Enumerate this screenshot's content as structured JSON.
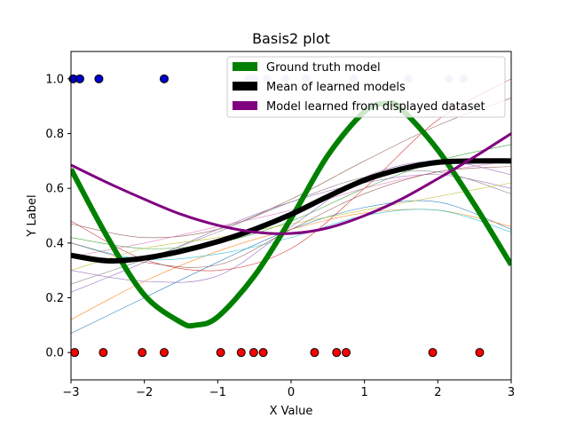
{
  "chart_data": {
    "type": "scatter",
    "title": "Basis2 plot",
    "xlabel": "X Value",
    "ylabel": "Y Label",
    "xlim": [
      -3,
      3
    ],
    "ylim": [
      -0.1,
      1.1
    ],
    "xticks": [
      "−3",
      "−2",
      "−1",
      "0",
      "1",
      "2",
      "3"
    ],
    "xtick_values": [
      -3,
      -2,
      -1,
      0,
      1,
      2,
      3
    ],
    "yticks": [
      "0.0",
      "0.2",
      "0.4",
      "0.6",
      "0.8",
      "1.0"
    ],
    "ytick_values": [
      0,
      0.2,
      0.4,
      0.6,
      0.8,
      1.0
    ],
    "grid": false,
    "legend_position": "top-right",
    "colors": {
      "ground_truth": "#008000",
      "mean": "#000000",
      "displayed": "#800080",
      "point_one": "#0000cd",
      "point_zero": "#ff0000",
      "point_faded": "#c8c8f0"
    },
    "series": [
      {
        "name": "Ground truth model",
        "kind": "line",
        "x": [
          -3.0,
          -2.5,
          -2.0,
          -1.5,
          -1.3,
          -1.0,
          -0.5,
          0.0,
          0.5,
          1.0,
          1.3,
          1.5,
          2.0,
          2.5,
          3.0
        ],
        "y": [
          0.67,
          0.42,
          0.21,
          0.11,
          0.1,
          0.13,
          0.28,
          0.49,
          0.72,
          0.88,
          0.91,
          0.89,
          0.74,
          0.54,
          0.32
        ]
      },
      {
        "name": "Mean of learned models",
        "kind": "line",
        "x": [
          -3.0,
          -2.5,
          -2.0,
          -1.5,
          -1.0,
          -0.5,
          0.0,
          0.5,
          1.0,
          1.5,
          2.0,
          2.5,
          3.0
        ],
        "y": [
          0.355,
          0.335,
          0.345,
          0.37,
          0.405,
          0.45,
          0.505,
          0.57,
          0.63,
          0.67,
          0.695,
          0.7,
          0.7
        ]
      },
      {
        "name": "Model learned from displayed dataset",
        "kind": "line",
        "x": [
          -3.0,
          -2.5,
          -2.0,
          -1.5,
          -1.0,
          -0.5,
          0.0,
          0.5,
          1.0,
          1.5,
          2.0,
          2.5,
          3.0
        ],
        "y": [
          0.685,
          0.62,
          0.56,
          0.505,
          0.465,
          0.44,
          0.435,
          0.455,
          0.5,
          0.56,
          0.635,
          0.715,
          0.8
        ]
      }
    ],
    "thin_models": [
      {
        "color": "#1f77b4",
        "x": [
          -3,
          -2,
          -1,
          0,
          1,
          2,
          3
        ],
        "y": [
          0.07,
          0.2,
          0.33,
          0.45,
          0.53,
          0.55,
          0.45
        ]
      },
      {
        "color": "#ff7f0e",
        "x": [
          -3,
          -2,
          -1,
          0,
          1,
          2,
          3
        ],
        "y": [
          0.12,
          0.26,
          0.37,
          0.45,
          0.51,
          0.52,
          0.46
        ]
      },
      {
        "color": "#2ca02c",
        "x": [
          -3,
          -2,
          -1,
          0,
          1,
          2,
          3
        ],
        "y": [
          0.42,
          0.38,
          0.4,
          0.48,
          0.6,
          0.7,
          0.76
        ]
      },
      {
        "color": "#d62728",
        "x": [
          -3,
          -2,
          -1,
          0,
          1,
          2,
          3
        ],
        "y": [
          0.48,
          0.34,
          0.3,
          0.38,
          0.6,
          0.85,
          1.0
        ]
      },
      {
        "color": "#9467bd",
        "x": [
          -3,
          -2,
          -1,
          0,
          1,
          2,
          3
        ],
        "y": [
          0.22,
          0.33,
          0.45,
          0.55,
          0.62,
          0.65,
          0.6
        ]
      },
      {
        "color": "#8c564b",
        "x": [
          -3,
          -2,
          -1,
          0,
          1,
          2,
          3
        ],
        "y": [
          0.47,
          0.42,
          0.45,
          0.56,
          0.7,
          0.83,
          0.93
        ]
      },
      {
        "color": "#e377c2",
        "x": [
          -3,
          -2,
          -1,
          0,
          1,
          2,
          3
        ],
        "y": [
          0.35,
          0.4,
          0.46,
          0.52,
          0.6,
          0.66,
          0.7
        ]
      },
      {
        "color": "#7f7f7f",
        "x": [
          -3,
          -2,
          -1,
          0,
          1,
          2,
          3
        ],
        "y": [
          0.25,
          0.34,
          0.44,
          0.55,
          0.64,
          0.66,
          0.58
        ]
      },
      {
        "color": "#bcbd22",
        "x": [
          -3,
          -2,
          -1,
          0,
          1,
          2,
          3
        ],
        "y": [
          0.3,
          0.38,
          0.42,
          0.47,
          0.52,
          0.57,
          0.62
        ]
      },
      {
        "color": "#17becf",
        "x": [
          -3,
          -2,
          -1,
          0,
          1,
          2,
          3
        ],
        "y": [
          0.4,
          0.34,
          0.36,
          0.42,
          0.5,
          0.52,
          0.44
        ]
      },
      {
        "color": "#9467bd",
        "x": [
          -3,
          -2,
          -1,
          0,
          1,
          2,
          3
        ],
        "y": [
          0.3,
          0.26,
          0.28,
          0.46,
          0.64,
          0.7,
          0.65
        ]
      },
      {
        "color": "#8c564b",
        "x": [
          -3,
          -2,
          -1,
          0,
          1,
          2,
          3
        ],
        "y": [
          0.4,
          0.33,
          0.32,
          0.45,
          0.58,
          0.66,
          0.68
        ]
      }
    ],
    "points_one": [
      -2.97,
      -2.88,
      -2.62,
      -1.73
    ],
    "points_one_faded": [
      -0.58,
      -0.5,
      -0.33,
      -0.08,
      0.2,
      0.85,
      1.6,
      2.15,
      2.35
    ],
    "points_zero": [
      -2.95,
      -2.56,
      -2.03,
      -1.73,
      -0.96,
      -0.68,
      -0.51,
      -0.38,
      0.32,
      0.62,
      0.75,
      1.93,
      2.57
    ]
  }
}
